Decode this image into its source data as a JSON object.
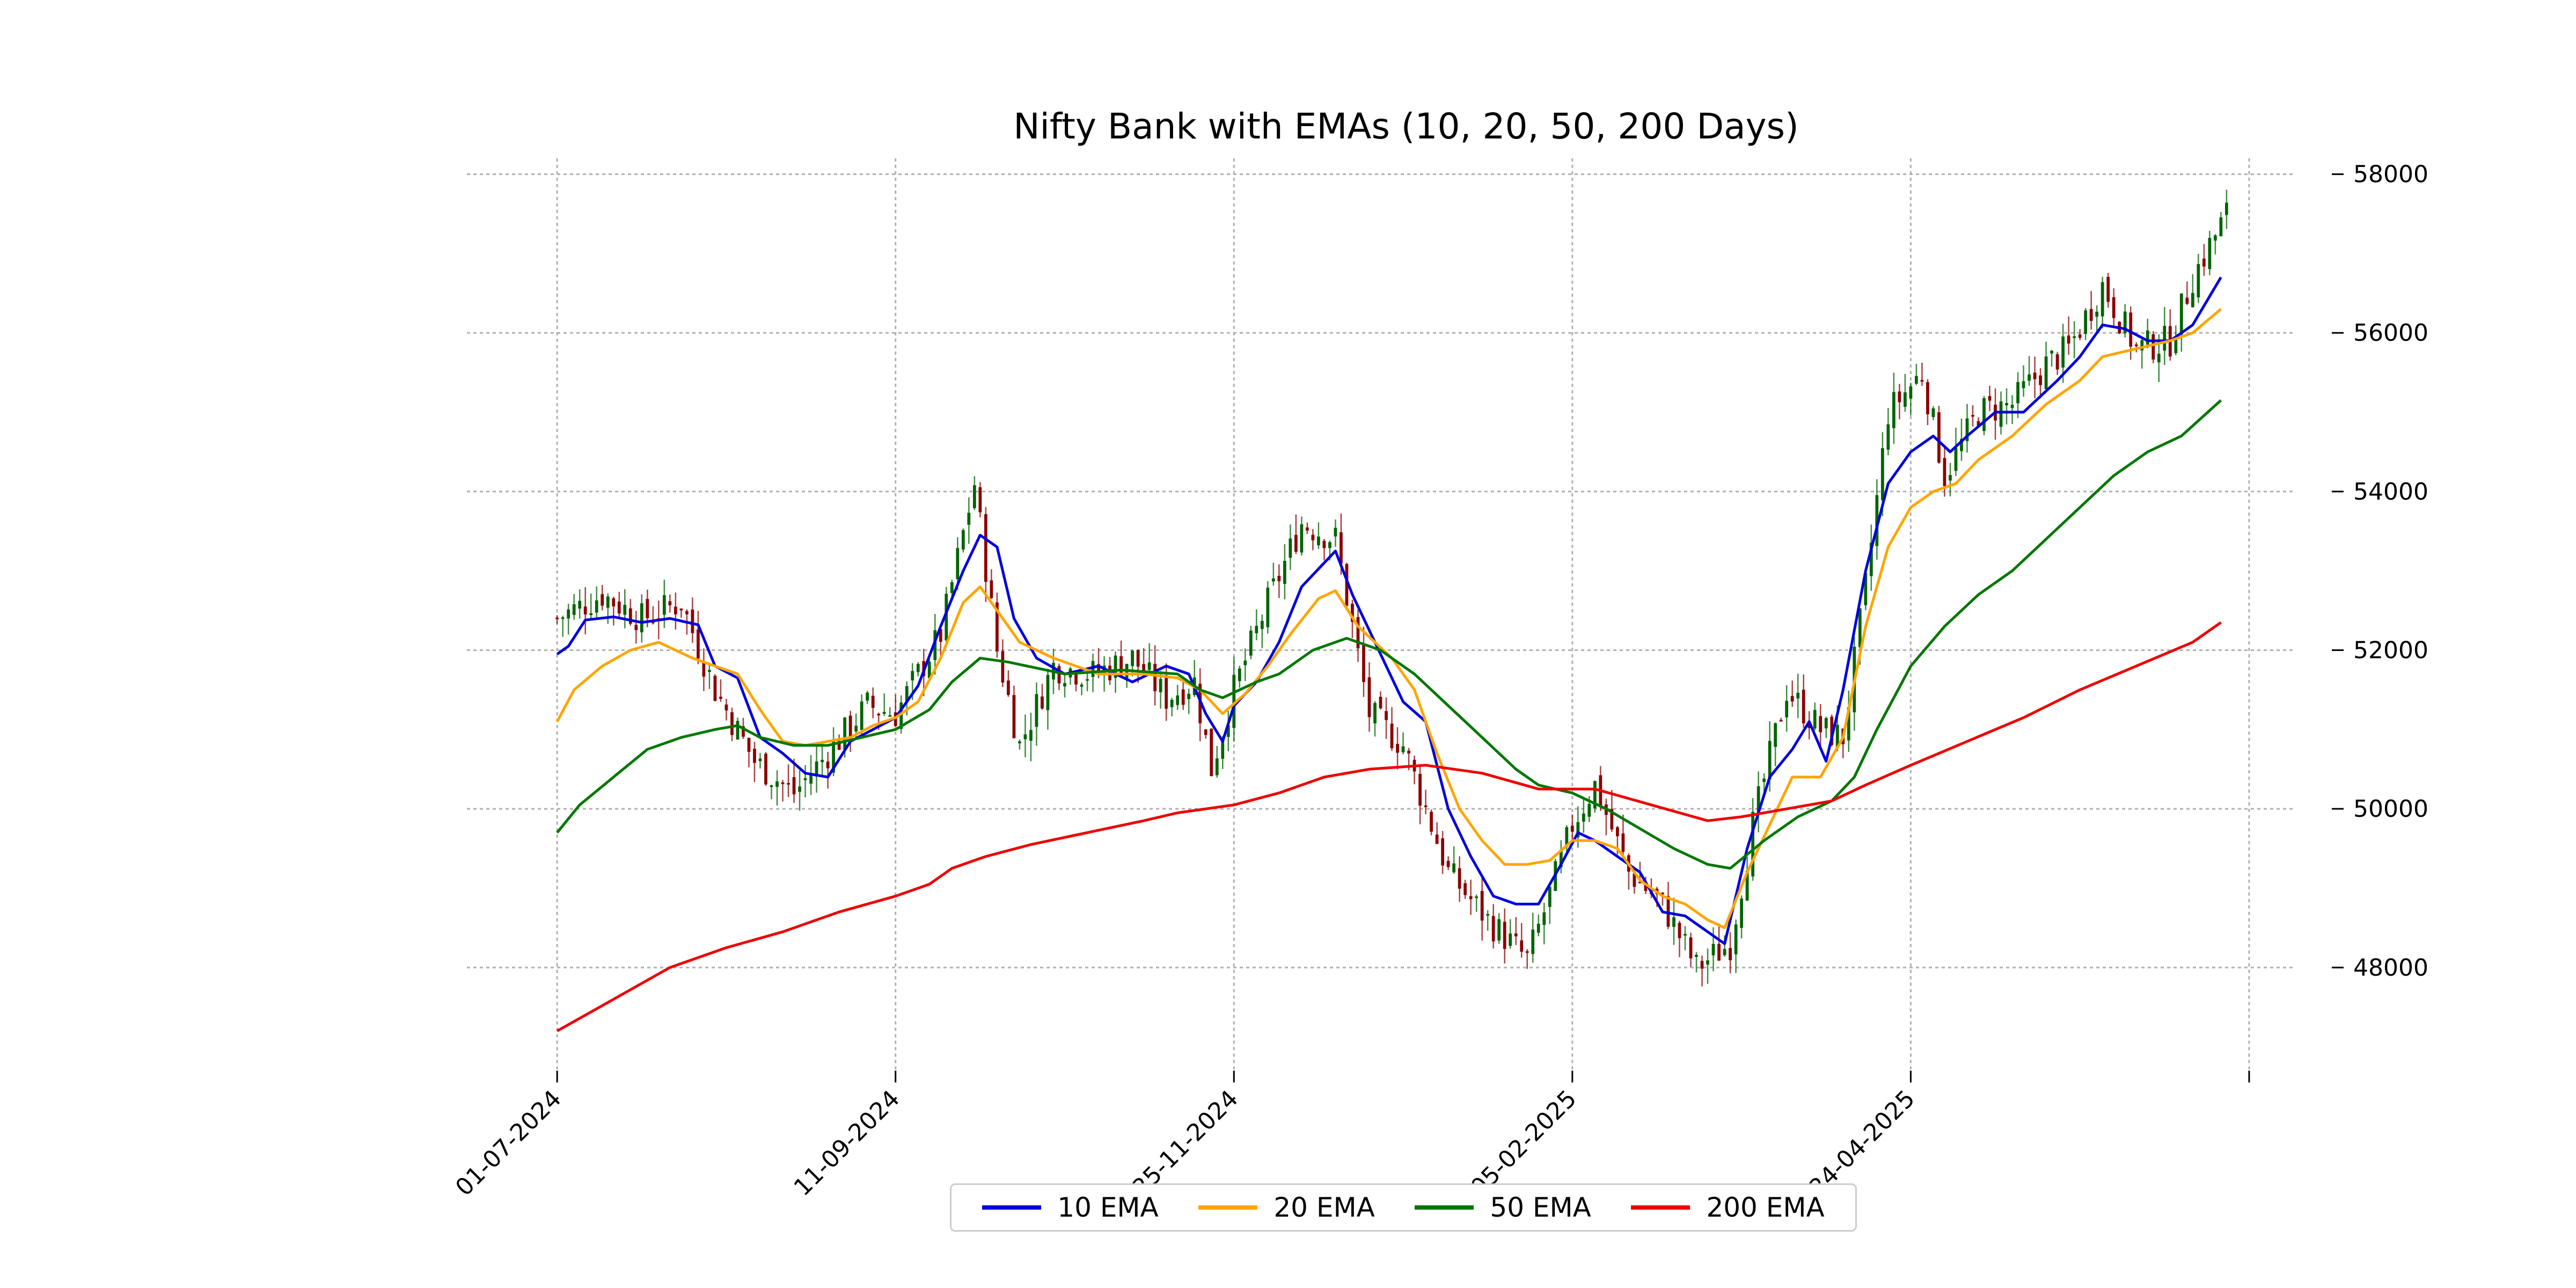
{
  "chart_data": {
    "type": "line",
    "title": "Nifty Bank with EMAs (10, 20, 50, 200 Days)",
    "xlabel": "",
    "ylabel": "",
    "x_tick_labels": [
      "01-07-2024",
      "11-09-2024",
      "25-11-2024",
      "05-02-2025",
      "24-04-2025"
    ],
    "y_ticks": [
      48000,
      50000,
      52000,
      54000,
      56000,
      58000
    ],
    "ylim": [
      46700,
      58200
    ],
    "grid": true,
    "legend_placement": "bottom-center",
    "x_unit": "trading-day index",
    "xlim": [
      -16,
      308
    ],
    "x_tick_positions": [
      0,
      60,
      120,
      180,
      240,
      300
    ],
    "candles": {
      "up_color": "#006400",
      "down_color": "#8b0000",
      "anchors": [
        [
          0,
          52400
        ],
        [
          8,
          52700
        ],
        [
          15,
          52400
        ],
        [
          22,
          52600
        ],
        [
          28,
          51500
        ],
        [
          35,
          50600
        ],
        [
          42,
          50200
        ],
        [
          48,
          50700
        ],
        [
          55,
          51300
        ],
        [
          60,
          51200
        ],
        [
          68,
          52200
        ],
        [
          74,
          54100
        ],
        [
          78,
          52000
        ],
        [
          82,
          50800
        ],
        [
          88,
          51800
        ],
        [
          95,
          51700
        ],
        [
          102,
          51900
        ],
        [
          108,
          51400
        ],
        [
          113,
          51600
        ],
        [
          116,
          50500
        ],
        [
          120,
          51500
        ],
        [
          126,
          52600
        ],
        [
          132,
          53600
        ],
        [
          138,
          53400
        ],
        [
          144,
          51200
        ],
        [
          150,
          50800
        ],
        [
          158,
          49200
        ],
        [
          165,
          48600
        ],
        [
          172,
          48100
        ],
        [
          175,
          48700
        ],
        [
          180,
          49800
        ],
        [
          184,
          50300
        ],
        [
          190,
          49200
        ],
        [
          196,
          48800
        ],
        [
          202,
          48000
        ],
        [
          208,
          48300
        ],
        [
          212,
          49800
        ],
        [
          218,
          51500
        ],
        [
          224,
          51000
        ],
        [
          228,
          50900
        ],
        [
          232,
          52800
        ],
        [
          236,
          55000
        ],
        [
          242,
          55500
        ],
        [
          246,
          54200
        ],
        [
          252,
          55000
        ],
        [
          258,
          55100
        ],
        [
          264,
          55600
        ],
        [
          268,
          55800
        ],
        [
          274,
          56600
        ],
        [
          280,
          55800
        ],
        [
          286,
          55900
        ],
        [
          290,
          56700
        ],
        [
          296,
          57500
        ]
      ]
    },
    "series": [
      {
        "name": "10 EMA",
        "color": "#0000dd",
        "points": [
          [
            0,
            51950
          ],
          [
            2,
            52050
          ],
          [
            5,
            52380
          ],
          [
            10,
            52420
          ],
          [
            15,
            52350
          ],
          [
            20,
            52400
          ],
          [
            25,
            52320
          ],
          [
            28,
            51800
          ],
          [
            32,
            51650
          ],
          [
            36,
            50900
          ],
          [
            40,
            50700
          ],
          [
            44,
            50450
          ],
          [
            48,
            50400
          ],
          [
            52,
            50850
          ],
          [
            56,
            51000
          ],
          [
            60,
            51150
          ],
          [
            64,
            51550
          ],
          [
            68,
            52300
          ],
          [
            72,
            53000
          ],
          [
            75,
            53450
          ],
          [
            78,
            53300
          ],
          [
            81,
            52400
          ],
          [
            85,
            51900
          ],
          [
            90,
            51700
          ],
          [
            96,
            51800
          ],
          [
            102,
            51600
          ],
          [
            108,
            51800
          ],
          [
            112,
            51700
          ],
          [
            115,
            51200
          ],
          [
            118,
            50850
          ],
          [
            120,
            51300
          ],
          [
            124,
            51600
          ],
          [
            128,
            52100
          ],
          [
            132,
            52800
          ],
          [
            136,
            53100
          ],
          [
            138,
            53250
          ],
          [
            141,
            52700
          ],
          [
            145,
            52100
          ],
          [
            150,
            51350
          ],
          [
            154,
            51100
          ],
          [
            158,
            50000
          ],
          [
            162,
            49400
          ],
          [
            166,
            48900
          ],
          [
            170,
            48800
          ],
          [
            174,
            48800
          ],
          [
            178,
            49300
          ],
          [
            181,
            49700
          ],
          [
            184,
            49600
          ],
          [
            188,
            49400
          ],
          [
            192,
            49200
          ],
          [
            196,
            48700
          ],
          [
            200,
            48650
          ],
          [
            204,
            48450
          ],
          [
            207,
            48300
          ],
          [
            211,
            49500
          ],
          [
            215,
            50400
          ],
          [
            219,
            50750
          ],
          [
            222,
            51100
          ],
          [
            225,
            50600
          ],
          [
            228,
            51500
          ],
          [
            232,
            53000
          ],
          [
            236,
            54100
          ],
          [
            240,
            54500
          ],
          [
            244,
            54700
          ],
          [
            247,
            54500
          ],
          [
            250,
            54700
          ],
          [
            255,
            55000
          ],
          [
            260,
            55000
          ],
          [
            266,
            55400
          ],
          [
            270,
            55700
          ],
          [
            274,
            56100
          ],
          [
            278,
            56050
          ],
          [
            282,
            55900
          ],
          [
            286,
            55900
          ],
          [
            290,
            56100
          ],
          [
            295,
            56700
          ]
        ]
      },
      {
        "name": "20 EMA",
        "color": "#ffa500",
        "points": [
          [
            0,
            51100
          ],
          [
            3,
            51500
          ],
          [
            8,
            51800
          ],
          [
            13,
            52000
          ],
          [
            18,
            52100
          ],
          [
            24,
            51900
          ],
          [
            28,
            51800
          ],
          [
            32,
            51700
          ],
          [
            36,
            51250
          ],
          [
            40,
            50850
          ],
          [
            44,
            50800
          ],
          [
            48,
            50850
          ],
          [
            52,
            50900
          ],
          [
            56,
            51050
          ],
          [
            60,
            51150
          ],
          [
            64,
            51350
          ],
          [
            68,
            51900
          ],
          [
            72,
            52600
          ],
          [
            75,
            52800
          ],
          [
            78,
            52500
          ],
          [
            82,
            52100
          ],
          [
            88,
            51900
          ],
          [
            96,
            51700
          ],
          [
            104,
            51700
          ],
          [
            110,
            51650
          ],
          [
            114,
            51500
          ],
          [
            118,
            51200
          ],
          [
            122,
            51450
          ],
          [
            126,
            51800
          ],
          [
            130,
            52200
          ],
          [
            135,
            52650
          ],
          [
            138,
            52750
          ],
          [
            142,
            52300
          ],
          [
            148,
            51900
          ],
          [
            152,
            51500
          ],
          [
            156,
            50700
          ],
          [
            160,
            50000
          ],
          [
            164,
            49600
          ],
          [
            168,
            49300
          ],
          [
            172,
            49300
          ],
          [
            176,
            49350
          ],
          [
            180,
            49600
          ],
          [
            184,
            49600
          ],
          [
            188,
            49500
          ],
          [
            192,
            49100
          ],
          [
            196,
            48900
          ],
          [
            200,
            48800
          ],
          [
            204,
            48600
          ],
          [
            207,
            48500
          ],
          [
            211,
            49200
          ],
          [
            215,
            49800
          ],
          [
            219,
            50400
          ],
          [
            224,
            50400
          ],
          [
            228,
            50900
          ],
          [
            232,
            52300
          ],
          [
            236,
            53300
          ],
          [
            240,
            53800
          ],
          [
            244,
            54000
          ],
          [
            248,
            54100
          ],
          [
            252,
            54400
          ],
          [
            258,
            54700
          ],
          [
            264,
            55100
          ],
          [
            270,
            55400
          ],
          [
            274,
            55700
          ],
          [
            280,
            55800
          ],
          [
            286,
            55900
          ],
          [
            290,
            56000
          ],
          [
            295,
            56300
          ]
        ]
      },
      {
        "name": "50 EMA",
        "color": "#007700",
        "points": [
          [
            0,
            49700
          ],
          [
            4,
            50050
          ],
          [
            10,
            50400
          ],
          [
            16,
            50750
          ],
          [
            22,
            50900
          ],
          [
            28,
            51000
          ],
          [
            32,
            51050
          ],
          [
            36,
            50900
          ],
          [
            42,
            50800
          ],
          [
            48,
            50800
          ],
          [
            54,
            50900
          ],
          [
            60,
            51000
          ],
          [
            66,
            51250
          ],
          [
            70,
            51600
          ],
          [
            75,
            51900
          ],
          [
            80,
            51850
          ],
          [
            90,
            51700
          ],
          [
            100,
            51750
          ],
          [
            110,
            51700
          ],
          [
            114,
            51500
          ],
          [
            118,
            51400
          ],
          [
            124,
            51600
          ],
          [
            128,
            51700
          ],
          [
            134,
            52000
          ],
          [
            140,
            52150
          ],
          [
            146,
            52000
          ],
          [
            152,
            51700
          ],
          [
            158,
            51300
          ],
          [
            164,
            50900
          ],
          [
            170,
            50500
          ],
          [
            174,
            50300
          ],
          [
            180,
            50200
          ],
          [
            186,
            50000
          ],
          [
            192,
            49750
          ],
          [
            198,
            49500
          ],
          [
            204,
            49300
          ],
          [
            208,
            49250
          ],
          [
            214,
            49600
          ],
          [
            220,
            49900
          ],
          [
            226,
            50100
          ],
          [
            230,
            50400
          ],
          [
            234,
            51000
          ],
          [
            240,
            51800
          ],
          [
            246,
            52300
          ],
          [
            252,
            52700
          ],
          [
            258,
            53000
          ],
          [
            264,
            53400
          ],
          [
            270,
            53800
          ],
          [
            276,
            54200
          ],
          [
            282,
            54500
          ],
          [
            288,
            54700
          ],
          [
            295,
            55150
          ]
        ]
      },
      {
        "name": "200 EMA",
        "color": "#ee0000",
        "points": [
          [
            0,
            47200
          ],
          [
            10,
            47600
          ],
          [
            20,
            48000
          ],
          [
            30,
            48250
          ],
          [
            40,
            48450
          ],
          [
            50,
            48700
          ],
          [
            60,
            48900
          ],
          [
            66,
            49050
          ],
          [
            70,
            49250
          ],
          [
            76,
            49400
          ],
          [
            84,
            49550
          ],
          [
            94,
            49700
          ],
          [
            104,
            49850
          ],
          [
            110,
            49950
          ],
          [
            120,
            50050
          ],
          [
            128,
            50200
          ],
          [
            136,
            50400
          ],
          [
            144,
            50500
          ],
          [
            154,
            50550
          ],
          [
            164,
            50450
          ],
          [
            174,
            50250
          ],
          [
            184,
            50250
          ],
          [
            194,
            50050
          ],
          [
            204,
            49850
          ],
          [
            210,
            49900
          ],
          [
            218,
            50000
          ],
          [
            226,
            50100
          ],
          [
            232,
            50300
          ],
          [
            240,
            50550
          ],
          [
            250,
            50850
          ],
          [
            260,
            51150
          ],
          [
            270,
            51500
          ],
          [
            280,
            51800
          ],
          [
            290,
            52100
          ],
          [
            295,
            52350
          ]
        ]
      }
    ]
  }
}
